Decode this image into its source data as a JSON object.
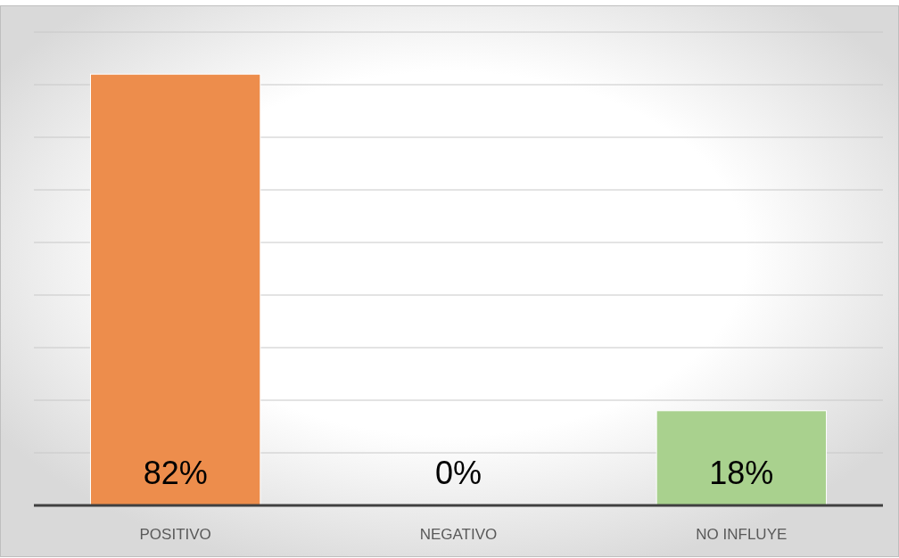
{
  "chart_data": {
    "type": "bar",
    "categories": [
      "POSITIVO",
      "NEGATIVO",
      "NO INFLUYE"
    ],
    "values": [
      82,
      0,
      18
    ],
    "colors": [
      "#ed8d4c",
      "#ed8d4c",
      "#a9d18e"
    ],
    "value_labels": [
      "82%",
      "0%",
      "18%"
    ],
    "ylim": [
      0,
      90
    ],
    "yticks": [
      {
        "value": 0,
        "label": null
      },
      {
        "value": 10,
        "label": null
      },
      {
        "value": 20,
        "label": null
      },
      {
        "value": 30,
        "label": null
      },
      {
        "value": 40,
        "label": null
      },
      {
        "value": 50,
        "label": null
      },
      {
        "value": 60,
        "label": null
      },
      {
        "value": 70,
        "label": null
      },
      {
        "value": 80,
        "label": null
      },
      {
        "value": 90,
        "label": null
      }
    ],
    "grid": true
  }
}
